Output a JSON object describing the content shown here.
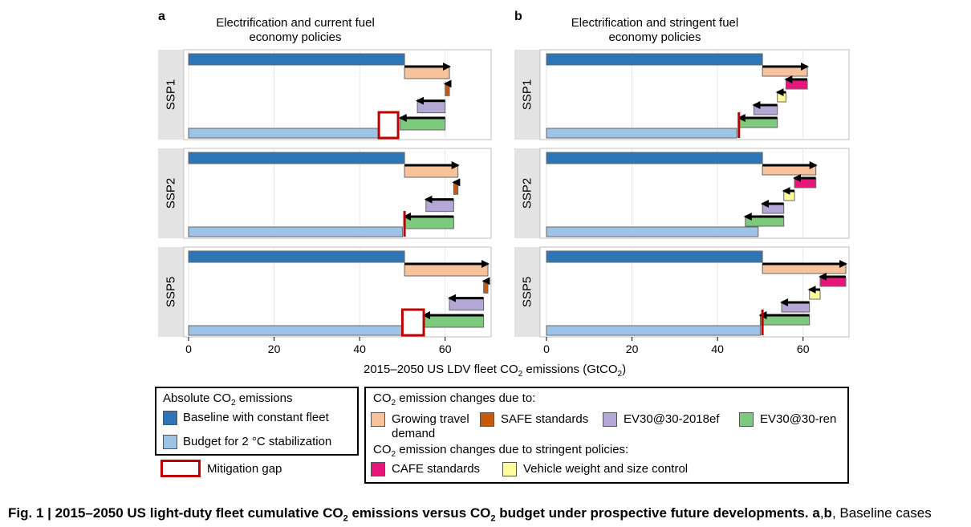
{
  "colors": {
    "baseline": "#2e75b6",
    "budget": "#9dc3e6",
    "growing": "#f8c29a",
    "safe": "#c55a11",
    "ev_ef": "#b4a7d6",
    "ev_ren": "#7dc97d",
    "cafe": "#e8157a",
    "weight": "#fdfd9a",
    "gap": "#c00000",
    "strip": "#e3e3e3"
  },
  "chart_data": [
    {
      "type": "bar",
      "panel": "a",
      "title": "Electrification and current fuel economy policies",
      "xlabel": "2015–2050 US LDV fleet CO2 emissions (GtCO2)",
      "xlim": [
        0,
        70
      ],
      "xticks": [
        "0",
        "20",
        "40",
        "60"
      ],
      "rows": [
        {
          "label": "SSP1",
          "baseline": 50.5,
          "steps": [
            {
              "kind": "growing",
              "from": 50.5,
              "to": 61.0
            },
            {
              "kind": "safe",
              "from": 61.0,
              "to": 60.0
            },
            {
              "kind": "ev_ef",
              "from": 60.0,
              "to": 53.5
            },
            {
              "kind": "ev_ren",
              "from": 60.0,
              "to": 49.5
            }
          ],
          "budget": 44.5,
          "gap": [
            44.5,
            49.0
          ]
        },
        {
          "label": "SSP2",
          "baseline": 50.5,
          "steps": [
            {
              "kind": "growing",
              "from": 50.5,
              "to": 63.0
            },
            {
              "kind": "safe",
              "from": 63.0,
              "to": 62.0
            },
            {
              "kind": "ev_ef",
              "from": 62.0,
              "to": 55.5
            },
            {
              "kind": "ev_ren",
              "from": 62.0,
              "to": 50.5
            }
          ],
          "budget": 50.0,
          "gap": [
            50.0,
            50.5
          ]
        },
        {
          "label": "SSP5",
          "baseline": 50.5,
          "steps": [
            {
              "kind": "growing",
              "from": 50.5,
              "to": 70.0
            },
            {
              "kind": "safe",
              "from": 70.0,
              "to": 69.0
            },
            {
              "kind": "ev_ef",
              "from": 69.0,
              "to": 61.0
            },
            {
              "kind": "ev_ren",
              "from": 69.0,
              "to": 55.0
            }
          ],
          "budget": 50.0,
          "gap": [
            50.0,
            55.0
          ]
        }
      ]
    },
    {
      "type": "bar",
      "panel": "b",
      "title": "Electrification and stringent fuel economy policies",
      "xlabel": "2015–2050 US LDV fleet CO2 emissions (GtCO2)",
      "xlim": [
        0,
        70
      ],
      "xticks": [
        "0",
        "20",
        "40",
        "60"
      ],
      "rows": [
        {
          "label": "SSP1",
          "baseline": 50.5,
          "steps": [
            {
              "kind": "growing",
              "from": 50.5,
              "to": 61.0
            },
            {
              "kind": "cafe",
              "from": 61.0,
              "to": 56.0
            },
            {
              "kind": "weight",
              "from": 56.0,
              "to": 54.0
            },
            {
              "kind": "ev_ef",
              "from": 54.0,
              "to": 48.5
            },
            {
              "kind": "ev_ren",
              "from": 54.0,
              "to": 45.0
            }
          ],
          "budget": 44.5,
          "gap": [
            44.5,
            45.0
          ]
        },
        {
          "label": "SSP2",
          "baseline": 50.5,
          "steps": [
            {
              "kind": "growing",
              "from": 50.5,
              "to": 63.0
            },
            {
              "kind": "cafe",
              "from": 63.0,
              "to": 58.0
            },
            {
              "kind": "weight",
              "from": 58.0,
              "to": 55.5
            },
            {
              "kind": "ev_ef",
              "from": 55.5,
              "to": 50.5
            },
            {
              "kind": "ev_ren",
              "from": 55.5,
              "to": 46.5
            }
          ],
          "budget": 49.5,
          "gap": null
        },
        {
          "label": "SSP5",
          "baseline": 50.5,
          "steps": [
            {
              "kind": "growing",
              "from": 50.5,
              "to": 70.0
            },
            {
              "kind": "cafe",
              "from": 70.0,
              "to": 64.0
            },
            {
              "kind": "weight",
              "from": 64.0,
              "to": 61.5
            },
            {
              "kind": "ev_ef",
              "from": 61.5,
              "to": 55.0
            },
            {
              "kind": "ev_ren",
              "from": 61.5,
              "to": 50.0
            }
          ],
          "budget": 50.0,
          "gap": [
            50.0,
            50.5
          ]
        }
      ]
    }
  ],
  "legend": {
    "absolute_title": "Absolute CO",
    "absolute_title_sub": "2",
    "absolute_title_tail": " emissions",
    "baseline_label": "Baseline with constant fleet",
    "budget_label": "Budget for 2 °C stabilization",
    "gap_label": "Mitigation gap",
    "changes_title": "CO",
    "changes_title_sub": "2",
    "changes_title_tail": " emission changes due to:",
    "growing_label": "Growing travel demand",
    "safe_label": "SAFE standards",
    "ev_ef_label": "EV30@30-2018ef",
    "ev_ren_label": "EV30@30-ren",
    "stringent_title": "CO",
    "stringent_title_sub": "2",
    "stringent_title_tail": " emission changes due to stringent policies:",
    "cafe_label": "CAFE standards",
    "weight_label": "Vehicle weight and size control"
  },
  "xaxis": {
    "title_a": "2015–2050 US LDV fleet CO",
    "title_sub1": "2",
    "title_b": " emissions (GtCO",
    "title_sub2": "2",
    "title_c": ")"
  },
  "caption": {
    "bold_a": "Fig. 1 | 2015–2050 US light-duty fleet cumulative CO",
    "bold_sub1": "2",
    "bold_b": " emissions versus CO",
    "bold_sub2": "2",
    "bold_c": " budget under prospective future developments. ",
    "bold_ab": "a",
    "comma": ",",
    "bold_b2": "b",
    "normal": ", Baseline cases"
  }
}
